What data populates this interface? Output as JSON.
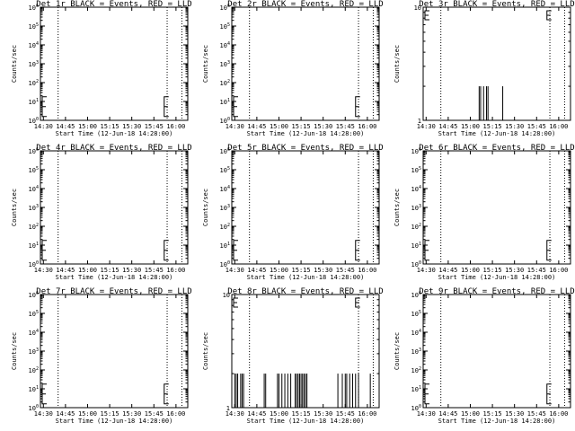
{
  "figure": {
    "x_tick_labels": [
      "14:30",
      "14:45",
      "15:00",
      "15:15",
      "15:30",
      "15:45",
      "16:00"
    ],
    "x_axis_label": "Start Time (12-Jun-18 14:28:00)",
    "y_axis_label": "Counts/sec",
    "colors": {
      "events": "#000000",
      "lld": "#ff0000",
      "background": "#ffffff"
    }
  },
  "chart_data": [
    {
      "type": "line",
      "title": "Det 1r BLACK = Events, RED = LLD",
      "xlabel": "Start Time (12-Jun-18 14:28:00)",
      "ylabel": "Counts/sec",
      "xlim": [
        "14:28",
        "16:08"
      ],
      "yscale": "log",
      "ylim": [
        1,
        1000000
      ],
      "ytick_labels": [
        "10^0",
        "10^1",
        "10^2",
        "10^3",
        "10^4",
        "10^5",
        "10^6"
      ],
      "dotted_vlines": [
        "14:40",
        "15:54",
        "16:04"
      ],
      "series": [
        {
          "values": []
        }
      ]
    },
    {
      "type": "line",
      "title": "Det 2r BLACK = Events, RED = LLD",
      "xlabel": "Start Time (12-Jun-18 14:28:00)",
      "ylabel": "Counts/sec",
      "xlim": [
        "14:28",
        "16:08"
      ],
      "yscale": "log",
      "ylim": [
        1,
        1000000
      ],
      "ytick_labels": [
        "10^0",
        "10^1",
        "10^2",
        "10^3",
        "10^4",
        "10^5",
        "10^6"
      ],
      "dotted_vlines": [
        "14:40",
        "15:54",
        "16:04"
      ],
      "series": [
        {
          "values": []
        }
      ]
    },
    {
      "type": "line",
      "title": "Det 3r BLACK = Events, RED = LLD",
      "xlabel": "Start Time (12-Jun-18 14:28:00)",
      "ylabel": "Counts/sec",
      "xlim": [
        "14:28",
        "16:08"
      ],
      "yscale": "log",
      "ylim": [
        1,
        10
      ],
      "ytick_labels": [
        "1",
        "10"
      ],
      "dotted_vlines": [
        "14:40",
        "15:54",
        "16:04"
      ],
      "series": [
        {
          "values": [
            {
              "x": "15:06",
              "y": 2
            },
            {
              "x": "15:07",
              "y": 2
            },
            {
              "x": "15:09",
              "y": 2
            },
            {
              "x": "15:11",
              "y": 2
            },
            {
              "x": "15:12",
              "y": 2
            },
            {
              "x": "15:22",
              "y": 2
            }
          ]
        }
      ]
    },
    {
      "type": "line",
      "title": "Det 4r BLACK = Events, RED = LLD",
      "xlabel": "Start Time (12-Jun-18 14:28:00)",
      "ylabel": "Counts/sec",
      "xlim": [
        "14:28",
        "16:08"
      ],
      "yscale": "log",
      "ylim": [
        1,
        1000000
      ],
      "ytick_labels": [
        "10^0",
        "10^1",
        "10^2",
        "10^3",
        "10^4",
        "10^5",
        "10^6"
      ],
      "dotted_vlines": [
        "14:40",
        "15:54",
        "16:04"
      ],
      "series": [
        {
          "values": []
        }
      ]
    },
    {
      "type": "line",
      "title": "Det 5r BLACK = Events, RED = LLD",
      "xlabel": "Start Time (12-Jun-18 14:28:00)",
      "ylabel": "Counts/sec",
      "xlim": [
        "14:28",
        "16:08"
      ],
      "yscale": "log",
      "ylim": [
        1,
        1000000
      ],
      "ytick_labels": [
        "10^0",
        "10^1",
        "10^2",
        "10^3",
        "10^4",
        "10^5",
        "10^6"
      ],
      "dotted_vlines": [
        "14:40",
        "15:54",
        "16:04"
      ],
      "series": [
        {
          "values": []
        }
      ]
    },
    {
      "type": "line",
      "title": "Det 6r BLACK = Events, RED = LLD",
      "xlabel": "Start Time (12-Jun-18 14:28:00)",
      "ylabel": "Counts/sec",
      "xlim": [
        "14:28",
        "16:08"
      ],
      "yscale": "log",
      "ylim": [
        1,
        1000000
      ],
      "ytick_labels": [
        "10^0",
        "10^1",
        "10^2",
        "10^3",
        "10^4",
        "10^5",
        "10^6"
      ],
      "dotted_vlines": [
        "14:40",
        "15:54",
        "16:04"
      ],
      "series": [
        {
          "values": []
        }
      ]
    },
    {
      "type": "line",
      "title": "Det 7r BLACK = Events, RED = LLD",
      "xlabel": "Start Time (12-Jun-18 14:28:00)",
      "ylabel": "Counts/sec",
      "xlim": [
        "14:28",
        "16:08"
      ],
      "yscale": "log",
      "ylim": [
        1,
        1000000
      ],
      "ytick_labels": [
        "10^0",
        "10^1",
        "10^2",
        "10^3",
        "10^4",
        "10^5",
        "10^6"
      ],
      "dotted_vlines": [
        "14:40",
        "15:54",
        "16:04"
      ],
      "series": [
        {
          "values": []
        }
      ]
    },
    {
      "type": "line",
      "title": "Det 8r BLACK = Events, RED = LLD",
      "xlabel": "Start Time (12-Jun-18 14:28:00)",
      "ylabel": "Counts/sec",
      "xlim": [
        "14:28",
        "16:08"
      ],
      "yscale": "log",
      "ylim": [
        1,
        10
      ],
      "ytick_labels": [
        "1",
        "10"
      ],
      "dotted_vlines": [
        "14:40",
        "15:54",
        "16:04"
      ],
      "series": [
        {
          "values": [
            {
              "x": "14:30",
              "y": 2
            },
            {
              "x": "14:31",
              "y": 2
            },
            {
              "x": "14:32",
              "y": 2
            },
            {
              "x": "14:34",
              "y": 2
            },
            {
              "x": "14:35",
              "y": 2
            },
            {
              "x": "14:36",
              "y": 2
            },
            {
              "x": "14:50",
              "y": 2
            },
            {
              "x": "14:51",
              "y": 2
            },
            {
              "x": "14:59",
              "y": 2
            },
            {
              "x": "15:00",
              "y": 2
            },
            {
              "x": "15:02",
              "y": 2
            },
            {
              "x": "15:04",
              "y": 2
            },
            {
              "x": "15:06",
              "y": 2
            },
            {
              "x": "15:08",
              "y": 2
            },
            {
              "x": "15:11",
              "y": 2
            },
            {
              "x": "15:12",
              "y": 2
            },
            {
              "x": "15:13",
              "y": 2
            },
            {
              "x": "15:14",
              "y": 2
            },
            {
              "x": "15:15",
              "y": 2
            },
            {
              "x": "15:16",
              "y": 2
            },
            {
              "x": "15:17",
              "y": 2
            },
            {
              "x": "15:18",
              "y": 2
            },
            {
              "x": "15:19",
              "y": 2
            },
            {
              "x": "15:40",
              "y": 2
            },
            {
              "x": "15:43",
              "y": 2
            },
            {
              "x": "15:45",
              "y": 2
            },
            {
              "x": "15:46",
              "y": 2
            },
            {
              "x": "15:48",
              "y": 2
            },
            {
              "x": "15:50",
              "y": 2
            },
            {
              "x": "15:52",
              "y": 2
            },
            {
              "x": "15:54",
              "y": 2
            },
            {
              "x": "16:02",
              "y": 2
            }
          ]
        }
      ]
    },
    {
      "type": "line",
      "title": "Det 9r BLACK = Events, RED = LLD",
      "xlabel": "Start Time (12-Jun-18 14:28:00)",
      "ylabel": "Counts/sec",
      "xlim": [
        "14:28",
        "16:08"
      ],
      "yscale": "log",
      "ylim": [
        1,
        1000000
      ],
      "ytick_labels": [
        "10^0",
        "10^1",
        "10^2",
        "10^3",
        "10^4",
        "10^5",
        "10^6"
      ],
      "dotted_vlines": [
        "14:40",
        "15:54",
        "16:04"
      ],
      "series": [
        {
          "values": []
        }
      ]
    }
  ]
}
